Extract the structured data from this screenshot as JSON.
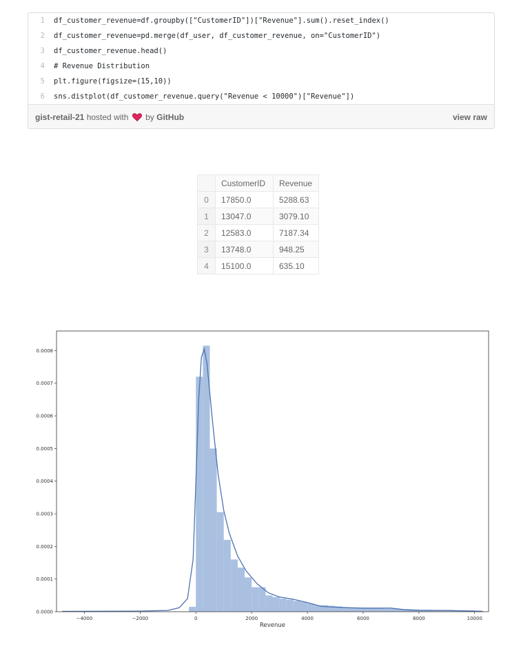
{
  "gist": {
    "lines": [
      {
        "num": "1",
        "code": "df_customer_revenue=df.groupby([\"CustomerID\"])[\"Revenue\"].sum().reset_index()"
      },
      {
        "num": "2",
        "code": "df_customer_revenue=pd.merge(df_user, df_customer_revenue, on=\"CustomerID\")"
      },
      {
        "num": "3",
        "code": "df_customer_revenue.head()"
      },
      {
        "num": "4",
        "code": "# Revenue Distribution"
      },
      {
        "num": "5",
        "code": "plt.figure(figsize=(15,10))"
      },
      {
        "num": "6",
        "code": "sns.distplot(df_customer_revenue.query(\"Revenue < 10000\")[\"Revenue\"])"
      }
    ],
    "file_name": "gist-retail-21",
    "hosted_with": "hosted with",
    "by_label": "by",
    "github": "GitHub",
    "view_raw": "view raw"
  },
  "table": {
    "headers": [
      "",
      "CustomerID",
      "Revenue"
    ],
    "rows": [
      [
        "0",
        "17850.0",
        "5288.63"
      ],
      [
        "1",
        "13047.0",
        "3079.10"
      ],
      [
        "2",
        "12583.0",
        "7187.34"
      ],
      [
        "3",
        "13748.0",
        "948.25"
      ],
      [
        "4",
        "15100.0",
        "635.10"
      ]
    ]
  },
  "chart_data": {
    "type": "bar",
    "title": "",
    "xlabel": "Revenue",
    "ylabel": "",
    "xlim": [
      -5000,
      10500
    ],
    "ylim": [
      0,
      0.00086
    ],
    "xticks": [
      -4000,
      -2000,
      0,
      2000,
      4000,
      6000,
      8000,
      10000
    ],
    "yticks": [
      "0.0000",
      "0.0001",
      "0.0002",
      "0.0003",
      "0.0004",
      "0.0005",
      "0.0006",
      "0.0007",
      "0.0008"
    ],
    "grid": false,
    "bin_width": 250,
    "bin_start": -250,
    "hist_values": [
      1.5e-05,
      0.00072,
      0.000815,
      0.0005,
      0.000305,
      0.00022,
      0.00016,
      0.000135,
      0.000105,
      7.5e-05,
      7.5e-05,
      5e-05,
      4.5e-05,
      4e-05,
      3.7e-05,
      3.3e-05,
      3e-05,
      2.5e-05,
      2e-05,
      2e-05,
      1.8e-05,
      1.6e-05,
      1.4e-05,
      1.2e-05,
      1.2e-05,
      1e-05,
      1e-05,
      1e-05,
      9e-06,
      9e-06,
      8e-06,
      8e-06,
      7e-06,
      6e-06,
      6e-06,
      5e-06,
      5e-06,
      5e-06,
      4e-06,
      4e-06,
      4e-06,
      3e-06
    ],
    "kde": [
      [
        -4800,
        1e-06
      ],
      [
        -2000,
        2e-06
      ],
      [
        -1000,
        4e-06
      ],
      [
        -600,
        1.2e-05
      ],
      [
        -300,
        4e-05
      ],
      [
        -100,
        0.00016
      ],
      [
        0,
        0.0004
      ],
      [
        100,
        0.00065
      ],
      [
        200,
        0.00078
      ],
      [
        300,
        0.000805
      ],
      [
        400,
        0.00076
      ],
      [
        600,
        0.00058
      ],
      [
        800,
        0.00042
      ],
      [
        1000,
        0.00031
      ],
      [
        1200,
        0.00024
      ],
      [
        1500,
        0.00017
      ],
      [
        1800,
        0.000125
      ],
      [
        2200,
        8.5e-05
      ],
      [
        2600,
        5.8e-05
      ],
      [
        3000,
        4.5e-05
      ],
      [
        3500,
        3.8e-05
      ],
      [
        4000,
        2.8e-05
      ],
      [
        4500,
        1.6e-05
      ],
      [
        5000,
        1.4e-05
      ],
      [
        5500,
        1.2e-05
      ],
      [
        6000,
        1.1e-05
      ],
      [
        7000,
        1.1e-05
      ],
      [
        7500,
        6e-06
      ],
      [
        8000,
        4e-06
      ],
      [
        9000,
        4e-06
      ],
      [
        10000,
        2e-06
      ],
      [
        10300,
        1e-06
      ]
    ],
    "colors": {
      "bar": "#a9c0e1",
      "line": "#4c72b0",
      "axis": "#333333"
    }
  }
}
